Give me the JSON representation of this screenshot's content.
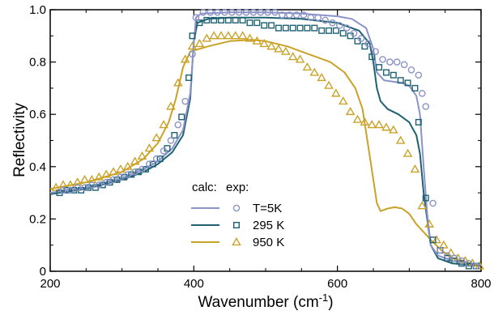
{
  "chart_data": {
    "type": "line",
    "xlabel": "Wavenumber (cm",
    "xlabel_sup": "-1",
    "xlabel_end": ")",
    "ylabel": "Reflectivity",
    "xlim": [
      200,
      800
    ],
    "ylim": [
      0,
      1.0
    ],
    "xticks": [
      200,
      400,
      600,
      800
    ],
    "xtick_labels": [
      "200",
      "400",
      "600",
      "800"
    ],
    "yticks": [
      0,
      0.2,
      0.4,
      0.6,
      0.8,
      1.0
    ],
    "ytick_labels": [
      "0",
      "0.2",
      "0.4",
      "0.6",
      "0.8",
      "1.0"
    ],
    "legend": {
      "placement": "bottom-center",
      "header_calc": "calc:",
      "header_exp": "exp:"
    },
    "series": [
      {
        "label": "T=5K",
        "color": "#8b93c8",
        "marker": "circle",
        "calc": [
          [
            200,
            0.3
          ],
          [
            250,
            0.32
          ],
          [
            300,
            0.355
          ],
          [
            330,
            0.39
          ],
          [
            350,
            0.42
          ],
          [
            370,
            0.47
          ],
          [
            385,
            0.54
          ],
          [
            395,
            0.68
          ],
          [
            400,
            0.87
          ],
          [
            403,
            0.97
          ],
          [
            410,
            0.985
          ],
          [
            450,
            0.99
          ],
          [
            500,
            0.99
          ],
          [
            550,
            0.985
          ],
          [
            600,
            0.975
          ],
          [
            620,
            0.965
          ],
          [
            640,
            0.93
          ],
          [
            650,
            0.85
          ],
          [
            655,
            0.76
          ],
          [
            665,
            0.73
          ],
          [
            690,
            0.72
          ],
          [
            700,
            0.71
          ],
          [
            710,
            0.67
          ],
          [
            715,
            0.6
          ],
          [
            720,
            0.4
          ],
          [
            725,
            0.22
          ],
          [
            730,
            0.1
          ],
          [
            740,
            0.06
          ],
          [
            760,
            0.04
          ],
          [
            800,
            0.025
          ]
        ],
        "exp": [
          [
            218,
            0.31
          ],
          [
            228,
            0.31
          ],
          [
            238,
            0.32
          ],
          [
            248,
            0.32
          ],
          [
            258,
            0.33
          ],
          [
            268,
            0.33
          ],
          [
            278,
            0.34
          ],
          [
            288,
            0.35
          ],
          [
            298,
            0.36
          ],
          [
            308,
            0.37
          ],
          [
            318,
            0.38
          ],
          [
            328,
            0.39
          ],
          [
            338,
            0.41
          ],
          [
            348,
            0.43
          ],
          [
            358,
            0.46
          ],
          [
            368,
            0.5
          ],
          [
            378,
            0.56
          ],
          [
            388,
            0.65
          ],
          [
            398,
            0.83
          ],
          [
            403,
            0.97
          ],
          [
            413,
            0.99
          ],
          [
            423,
            0.99
          ],
          [
            433,
            0.99
          ],
          [
            443,
            0.99
          ],
          [
            453,
            0.99
          ],
          [
            463,
            0.99
          ],
          [
            473,
            0.99
          ],
          [
            483,
            0.99
          ],
          [
            493,
            0.99
          ],
          [
            503,
            0.99
          ],
          [
            513,
            0.99
          ],
          [
            523,
            0.98
          ],
          [
            533,
            0.98
          ],
          [
            543,
            0.98
          ],
          [
            553,
            0.98
          ],
          [
            563,
            0.97
          ],
          [
            573,
            0.97
          ],
          [
            583,
            0.96
          ],
          [
            593,
            0.95
          ],
          [
            603,
            0.94
          ],
          [
            613,
            0.93
          ],
          [
            623,
            0.91
          ],
          [
            633,
            0.89
          ],
          [
            643,
            0.87
          ],
          [
            653,
            0.84
          ],
          [
            663,
            0.81
          ],
          [
            673,
            0.8
          ],
          [
            683,
            0.8
          ],
          [
            693,
            0.79
          ],
          [
            703,
            0.77
          ],
          [
            713,
            0.75
          ],
          [
            718,
            0.68
          ],
          [
            723,
            0.63
          ],
          [
            733,
            0.26
          ],
          [
            743,
            0.08
          ],
          [
            753,
            0.06
          ],
          [
            763,
            0.05
          ],
          [
            773,
            0.04
          ],
          [
            783,
            0.03
          ],
          [
            793,
            0.02
          ]
        ]
      },
      {
        "label": "295 K",
        "color": "#1e6272",
        "marker": "square",
        "calc": [
          [
            200,
            0.295
          ],
          [
            250,
            0.315
          ],
          [
            300,
            0.35
          ],
          [
            330,
            0.38
          ],
          [
            350,
            0.41
          ],
          [
            370,
            0.455
          ],
          [
            385,
            0.52
          ],
          [
            395,
            0.66
          ],
          [
            400,
            0.88
          ],
          [
            405,
            0.95
          ],
          [
            420,
            0.965
          ],
          [
            450,
            0.97
          ],
          [
            500,
            0.97
          ],
          [
            550,
            0.965
          ],
          [
            600,
            0.95
          ],
          [
            630,
            0.92
          ],
          [
            645,
            0.87
          ],
          [
            650,
            0.8
          ],
          [
            655,
            0.7
          ],
          [
            660,
            0.65
          ],
          [
            670,
            0.62
          ],
          [
            685,
            0.6
          ],
          [
            700,
            0.57
          ],
          [
            710,
            0.52
          ],
          [
            715,
            0.45
          ],
          [
            720,
            0.3
          ],
          [
            725,
            0.2
          ],
          [
            730,
            0.1
          ],
          [
            740,
            0.05
          ],
          [
            760,
            0.03
          ],
          [
            800,
            0.02
          ]
        ],
        "exp": [
          [
            213,
            0.3
          ],
          [
            223,
            0.31
          ],
          [
            233,
            0.31
          ],
          [
            243,
            0.31
          ],
          [
            253,
            0.32
          ],
          [
            263,
            0.32
          ],
          [
            273,
            0.33
          ],
          [
            283,
            0.34
          ],
          [
            293,
            0.35
          ],
          [
            303,
            0.36
          ],
          [
            313,
            0.37
          ],
          [
            323,
            0.38
          ],
          [
            333,
            0.39
          ],
          [
            343,
            0.41
          ],
          [
            353,
            0.43
          ],
          [
            363,
            0.47
          ],
          [
            373,
            0.52
          ],
          [
            383,
            0.59
          ],
          [
            393,
            0.74
          ],
          [
            398,
            0.9
          ],
          [
            408,
            0.95
          ],
          [
            418,
            0.96
          ],
          [
            428,
            0.96
          ],
          [
            438,
            0.96
          ],
          [
            448,
            0.96
          ],
          [
            458,
            0.96
          ],
          [
            468,
            0.96
          ],
          [
            478,
            0.95
          ],
          [
            488,
            0.95
          ],
          [
            498,
            0.94
          ],
          [
            508,
            0.94
          ],
          [
            518,
            0.93
          ],
          [
            528,
            0.93
          ],
          [
            538,
            0.93
          ],
          [
            548,
            0.93
          ],
          [
            558,
            0.93
          ],
          [
            568,
            0.93
          ],
          [
            578,
            0.92
          ],
          [
            588,
            0.92
          ],
          [
            598,
            0.92
          ],
          [
            608,
            0.91
          ],
          [
            618,
            0.9
          ],
          [
            628,
            0.88
          ],
          [
            638,
            0.86
          ],
          [
            648,
            0.82
          ],
          [
            658,
            0.78
          ],
          [
            668,
            0.76
          ],
          [
            678,
            0.75
          ],
          [
            688,
            0.73
          ],
          [
            698,
            0.72
          ],
          [
            708,
            0.7
          ],
          [
            713,
            0.57
          ],
          [
            723,
            0.28
          ],
          [
            733,
            0.12
          ],
          [
            743,
            0.08
          ],
          [
            753,
            0.05
          ],
          [
            763,
            0.04
          ],
          [
            773,
            0.03
          ],
          [
            783,
            0.02
          ],
          [
            793,
            0.02
          ]
        ]
      },
      {
        "label": "950 K",
        "color": "#c9a227",
        "marker": "triangle",
        "calc": [
          [
            200,
            0.315
          ],
          [
            250,
            0.34
          ],
          [
            300,
            0.38
          ],
          [
            330,
            0.43
          ],
          [
            350,
            0.49
          ],
          [
            365,
            0.57
          ],
          [
            375,
            0.66
          ],
          [
            385,
            0.78
          ],
          [
            395,
            0.84
          ],
          [
            420,
            0.86
          ],
          [
            450,
            0.88
          ],
          [
            480,
            0.885
          ],
          [
            500,
            0.88
          ],
          [
            530,
            0.86
          ],
          [
            560,
            0.83
          ],
          [
            590,
            0.8
          ],
          [
            610,
            0.76
          ],
          [
            625,
            0.7
          ],
          [
            635,
            0.62
          ],
          [
            645,
            0.44
          ],
          [
            655,
            0.26
          ],
          [
            660,
            0.23
          ],
          [
            670,
            0.24
          ],
          [
            680,
            0.245
          ],
          [
            690,
            0.24
          ],
          [
            700,
            0.22
          ],
          [
            710,
            0.18
          ],
          [
            720,
            0.15
          ],
          [
            730,
            0.12
          ],
          [
            745,
            0.08
          ],
          [
            760,
            0.05
          ],
          [
            800,
            0.02
          ]
        ],
        "exp": [
          [
            208,
            0.32
          ],
          [
            218,
            0.33
          ],
          [
            228,
            0.33
          ],
          [
            238,
            0.34
          ],
          [
            248,
            0.35
          ],
          [
            258,
            0.35
          ],
          [
            268,
            0.36
          ],
          [
            278,
            0.37
          ],
          [
            288,
            0.38
          ],
          [
            298,
            0.39
          ],
          [
            308,
            0.4
          ],
          [
            318,
            0.42
          ],
          [
            328,
            0.44
          ],
          [
            338,
            0.47
          ],
          [
            348,
            0.51
          ],
          [
            358,
            0.56
          ],
          [
            368,
            0.63
          ],
          [
            378,
            0.72
          ],
          [
            388,
            0.81
          ],
          [
            398,
            0.86
          ],
          [
            408,
            0.87
          ],
          [
            418,
            0.89
          ],
          [
            428,
            0.9
          ],
          [
            438,
            0.9
          ],
          [
            448,
            0.9
          ],
          [
            458,
            0.9
          ],
          [
            468,
            0.9
          ],
          [
            478,
            0.89
          ],
          [
            488,
            0.88
          ],
          [
            498,
            0.87
          ],
          [
            508,
            0.86
          ],
          [
            518,
            0.85
          ],
          [
            528,
            0.84
          ],
          [
            538,
            0.82
          ],
          [
            548,
            0.81
          ],
          [
            558,
            0.78
          ],
          [
            568,
            0.76
          ],
          [
            578,
            0.74
          ],
          [
            588,
            0.71
          ],
          [
            598,
            0.68
          ],
          [
            608,
            0.65
          ],
          [
            618,
            0.61
          ],
          [
            628,
            0.58
          ],
          [
            638,
            0.57
          ],
          [
            648,
            0.56
          ],
          [
            658,
            0.56
          ],
          [
            668,
            0.55
          ],
          [
            678,
            0.54
          ],
          [
            688,
            0.5
          ],
          [
            698,
            0.45
          ],
          [
            708,
            0.39
          ],
          [
            718,
            0.25
          ],
          [
            728,
            0.18
          ],
          [
            738,
            0.12
          ],
          [
            748,
            0.1
          ],
          [
            758,
            0.07
          ],
          [
            768,
            0.05
          ],
          [
            778,
            0.04
          ],
          [
            788,
            0.03
          ],
          [
            798,
            0.02
          ]
        ]
      }
    ]
  }
}
